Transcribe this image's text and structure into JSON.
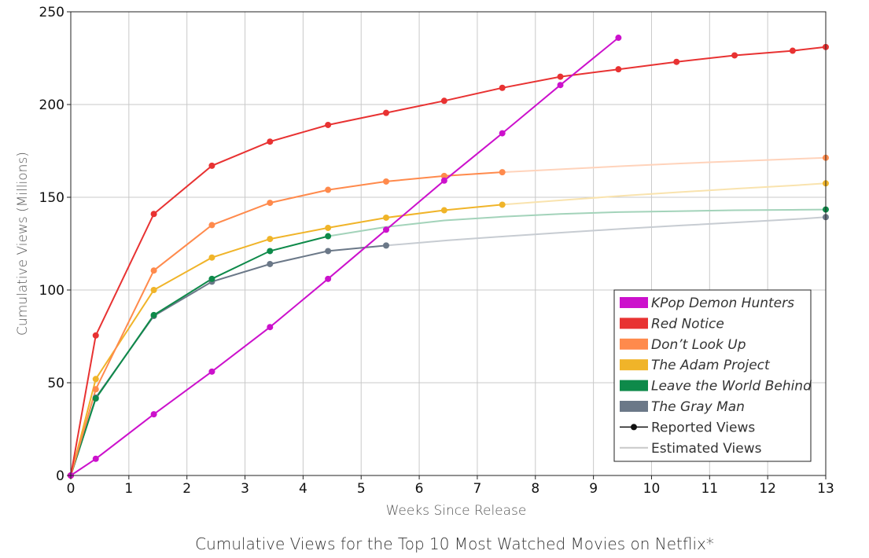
{
  "chart_data": {
    "type": "line",
    "title": "Cumulative Views for the Top 10 Most Watched Movies on Netflix*",
    "xlabel": "Weeks Since Release",
    "ylabel": "Cumulative Views (Millions)",
    "xlim": [
      0,
      13
    ],
    "ylim": [
      0,
      250
    ],
    "xticks": [
      0,
      1,
      2,
      3,
      4,
      5,
      6,
      7,
      8,
      9,
      10,
      11,
      12,
      13
    ],
    "yticks": [
      0,
      50,
      100,
      150,
      200,
      250
    ],
    "grid": true,
    "legend_position": "bottom-right",
    "series": [
      {
        "name": "KPop Demon Hunters",
        "color": "#cc11cc",
        "reported": [
          [
            0,
            0
          ],
          [
            0.43,
            9
          ],
          [
            1.43,
            33
          ],
          [
            2.43,
            56
          ],
          [
            3.43,
            80
          ],
          [
            4.43,
            106
          ],
          [
            5.43,
            132.5
          ],
          [
            6.43,
            159
          ],
          [
            7.43,
            184.5
          ],
          [
            8.43,
            210.5
          ],
          [
            9.43,
            236
          ]
        ],
        "estimated": []
      },
      {
        "name": "Red Notice",
        "color": "#e83232",
        "reported": [
          [
            0,
            0
          ],
          [
            0.43,
            75.5
          ],
          [
            1.43,
            141
          ],
          [
            2.43,
            167
          ],
          [
            3.43,
            180
          ],
          [
            4.43,
            189
          ],
          [
            5.43,
            195.5
          ],
          [
            6.43,
            202
          ],
          [
            7.43,
            209
          ],
          [
            8.43,
            215
          ],
          [
            9.43,
            219
          ],
          [
            10.43,
            223
          ],
          [
            11.43,
            226.5
          ],
          [
            12.43,
            229
          ],
          [
            13,
            231
          ]
        ],
        "estimated": []
      },
      {
        "name": "Don’t Look Up",
        "color": "#ff8a4c",
        "reported": [
          [
            0,
            0
          ],
          [
            0.43,
            46.5
          ],
          [
            1.43,
            110.5
          ],
          [
            2.43,
            135
          ],
          [
            3.43,
            147
          ],
          [
            4.43,
            154
          ],
          [
            5.43,
            158.5
          ],
          [
            6.43,
            161.5
          ],
          [
            7.43,
            163.5
          ]
        ],
        "estimated": [
          [
            7.43,
            163.5
          ],
          [
            8.5,
            165.2
          ],
          [
            9.5,
            166.8
          ],
          [
            10.5,
            168.2
          ],
          [
            11.5,
            169.5
          ],
          [
            12.5,
            170.7
          ],
          [
            13,
            171.3
          ]
        ],
        "estimated_end": [
          13,
          171.3
        ]
      },
      {
        "name": "The Adam Project",
        "color": "#f0b429",
        "reported": [
          [
            0,
            0
          ],
          [
            0.43,
            52
          ],
          [
            1.43,
            100
          ],
          [
            2.43,
            117.5
          ],
          [
            3.43,
            127.5
          ],
          [
            4.43,
            133.5
          ],
          [
            5.43,
            139
          ],
          [
            6.43,
            143
          ],
          [
            7.43,
            146
          ]
        ],
        "estimated": [
          [
            7.43,
            146
          ],
          [
            8.5,
            148.5
          ],
          [
            9.5,
            150.8
          ],
          [
            10.5,
            152.8
          ],
          [
            11.5,
            154.7
          ],
          [
            12.5,
            156.5
          ],
          [
            13,
            157.5
          ]
        ],
        "estimated_end": [
          13,
          157.5
        ]
      },
      {
        "name": "Leave the World Behind",
        "color": "#0e8a4a",
        "reported": [
          [
            0,
            0
          ],
          [
            0.43,
            41.5
          ],
          [
            1.43,
            86.5
          ],
          [
            2.43,
            106
          ],
          [
            3.43,
            121
          ],
          [
            4.43,
            129
          ]
        ],
        "estimated": [
          [
            4.43,
            129
          ],
          [
            5.43,
            134
          ],
          [
            6.43,
            137.5
          ],
          [
            7.43,
            139.5
          ],
          [
            8.43,
            141
          ],
          [
            9.43,
            142
          ],
          [
            10.43,
            142.5
          ],
          [
            11.43,
            143
          ],
          [
            12.43,
            143.2
          ],
          [
            13,
            143.4
          ]
        ],
        "estimated_end": [
          13,
          143.4
        ]
      },
      {
        "name": "The Gray Man",
        "color": "#6b7888",
        "reported": [
          [
            0,
            0
          ],
          [
            0.43,
            42
          ],
          [
            1.43,
            86
          ],
          [
            2.43,
            104.5
          ],
          [
            3.43,
            114
          ],
          [
            4.43,
            121
          ],
          [
            5.43,
            124
          ]
        ],
        "estimated": [
          [
            5.43,
            124
          ],
          [
            6.5,
            126.8
          ],
          [
            7.5,
            129
          ],
          [
            8.5,
            131
          ],
          [
            9.5,
            133
          ],
          [
            10.5,
            134.8
          ],
          [
            11.5,
            136.5
          ],
          [
            12.5,
            138.2
          ],
          [
            13,
            139.3
          ]
        ],
        "estimated_end": [
          13,
          139.3
        ]
      }
    ],
    "legend_extra": [
      {
        "label": "Reported Views",
        "style": "reported"
      },
      {
        "label": "Estimated Views",
        "style": "estimated"
      }
    ]
  }
}
